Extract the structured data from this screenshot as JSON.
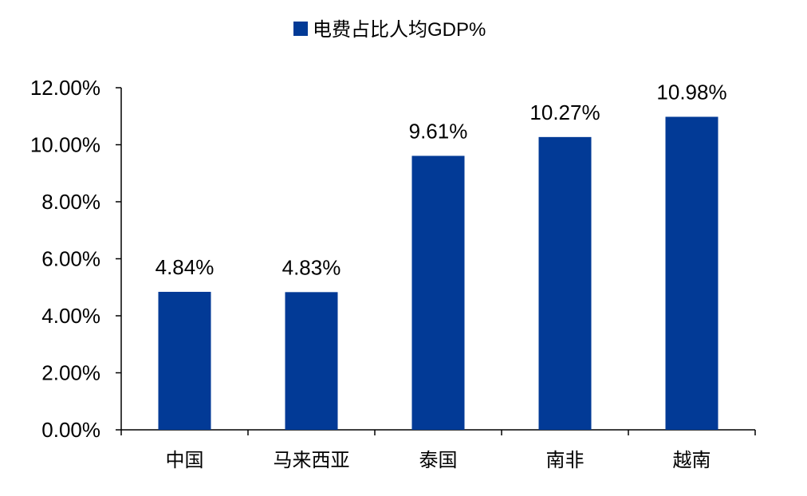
{
  "chart_data": {
    "type": "bar",
    "title": "",
    "xlabel": "",
    "ylabel": "",
    "categories": [
      "中国",
      "马来西亚",
      "泰国",
      "南非",
      "越南"
    ],
    "series": [
      {
        "name": "电费占比人均GDP%",
        "values": [
          4.84,
          4.83,
          9.61,
          10.27,
          10.98
        ],
        "data_labels": [
          "4.84%",
          "4.83%",
          "9.61%",
          "10.27%",
          "10.98%"
        ],
        "color": "#023a96"
      }
    ],
    "ylim": [
      0,
      12
    ],
    "yticks": [
      0,
      2,
      4,
      6,
      8,
      10,
      12
    ],
    "ytick_labels": [
      "0.00%",
      "2.00%",
      "4.00%",
      "6.00%",
      "8.00%",
      "10.00%",
      "12.00%"
    ],
    "grid": false,
    "legend_position": "top-center"
  }
}
